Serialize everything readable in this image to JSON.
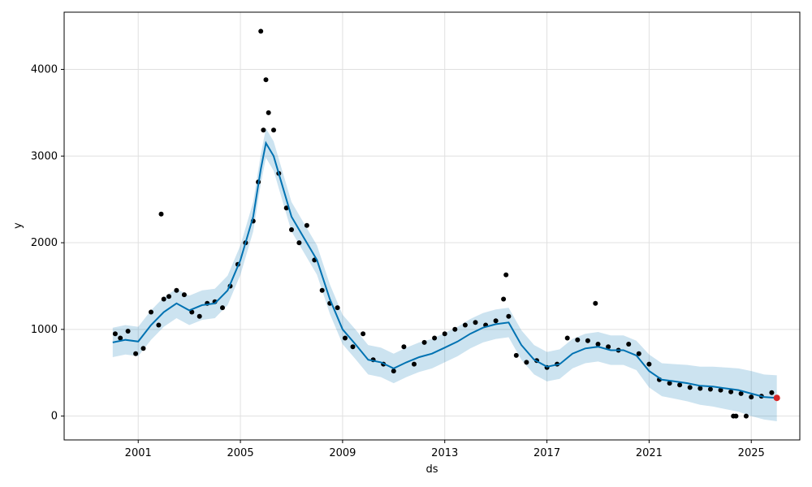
{
  "chart_data": {
    "type": "scatter",
    "title": "",
    "xlabel": "ds",
    "ylabel": "y",
    "xlim": [
      1998.1,
      2026.9
    ],
    "ylim": [
      -275,
      4660
    ],
    "x_ticks": [
      2001,
      2005,
      2009,
      2013,
      2017,
      2021,
      2025
    ],
    "y_ticks": [
      0,
      1000,
      2000,
      3000,
      4000
    ],
    "grid": true,
    "legend": "none",
    "colors": {
      "observations": "#000000",
      "forecast_line": "#0072B2",
      "uncertainty_band": "#0072B2",
      "last_point": "#d62728",
      "grid": "#e0e0e0"
    },
    "series": [
      {
        "name": "observed",
        "kind": "scatter",
        "x": [
          2000.1,
          2000.3,
          2000.6,
          2000.9,
          2001.2,
          2001.5,
          2001.8,
          2002.0,
          2002.2,
          2002.5,
          2002.8,
          2003.1,
          2003.4,
          2003.7,
          2004.0,
          2004.3,
          2004.6,
          2004.9,
          2005.2,
          2005.5,
          2005.7,
          2005.9,
          2006.1,
          2006.3,
          2006.5,
          2006.8,
          2007.0,
          2007.3,
          2007.6,
          2007.9,
          2008.2,
          2008.5,
          2008.8,
          2009.1,
          2009.4,
          2009.8,
          2010.2,
          2010.6,
          2011.0,
          2011.4,
          2011.8,
          2012.2,
          2012.6,
          2013.0,
          2013.4,
          2013.8,
          2014.2,
          2014.6,
          2015.0,
          2015.3,
          2015.5,
          2015.8,
          2016.2,
          2016.6,
          2017.0,
          2017.4,
          2017.8,
          2018.2,
          2018.6,
          2019.0,
          2019.4,
          2019.8,
          2020.2,
          2020.6,
          2021.0,
          2021.4,
          2021.8,
          2022.2,
          2022.6,
          2023.0,
          2023.4,
          2023.8,
          2024.2,
          2024.6,
          2025.0,
          2025.4,
          2025.8,
          2001.9,
          2005.8,
          2006.0,
          2015.4,
          2018.9,
          2024.3,
          2024.4,
          2024.8
        ],
        "y": [
          950,
          900,
          980,
          720,
          780,
          1200,
          1050,
          1350,
          1380,
          1450,
          1400,
          1200,
          1150,
          1300,
          1320,
          1250,
          1500,
          1750,
          2000,
          2250,
          2700,
          3300,
          3500,
          3300,
          2800,
          2400,
          2150,
          2000,
          2200,
          1800,
          1450,
          1300,
          1250,
          900,
          800,
          950,
          650,
          600,
          520,
          800,
          600,
          850,
          900,
          950,
          1000,
          1050,
          1080,
          1050,
          1100,
          1350,
          1150,
          700,
          620,
          640,
          560,
          600,
          900,
          880,
          870,
          830,
          800,
          760,
          830,
          720,
          600,
          420,
          380,
          360,
          330,
          320,
          310,
          300,
          280,
          260,
          220,
          230,
          270,
          2330,
          4440,
          3880,
          1630,
          1300,
          0,
          0,
          0
        ]
      },
      {
        "name": "forecast",
        "kind": "line",
        "x": [
          2000.0,
          2000.5,
          2001.0,
          2001.5,
          2002.0,
          2002.5,
          2003.0,
          2003.5,
          2004.0,
          2004.5,
          2005.0,
          2005.5,
          2005.8,
          2006.0,
          2006.3,
          2006.6,
          2007.0,
          2007.5,
          2008.0,
          2008.5,
          2009.0,
          2009.5,
          2010.0,
          2010.5,
          2011.0,
          2011.5,
          2012.0,
          2012.5,
          2013.0,
          2013.5,
          2014.0,
          2014.5,
          2015.0,
          2015.5,
          2016.0,
          2016.5,
          2017.0,
          2017.5,
          2018.0,
          2018.5,
          2019.0,
          2019.5,
          2020.0,
          2020.5,
          2021.0,
          2021.5,
          2022.0,
          2022.5,
          2023.0,
          2023.5,
          2024.0,
          2024.5,
          2025.0,
          2025.5,
          2026.0
        ],
        "y": [
          850,
          880,
          860,
          1050,
          1200,
          1300,
          1220,
          1280,
          1300,
          1450,
          1800,
          2300,
          2850,
          3150,
          3000,
          2700,
          2300,
          2050,
          1800,
          1350,
          1000,
          830,
          650,
          620,
          550,
          620,
          680,
          720,
          790,
          860,
          950,
          1020,
          1060,
          1080,
          820,
          650,
          570,
          600,
          720,
          780,
          800,
          760,
          760,
          700,
          520,
          420,
          400,
          380,
          350,
          340,
          320,
          300,
          260,
          220,
          210
        ]
      },
      {
        "name": "uncertainty",
        "kind": "band",
        "x": [
          2000.0,
          2000.5,
          2001.0,
          2001.5,
          2002.0,
          2002.5,
          2003.0,
          2003.5,
          2004.0,
          2004.5,
          2005.0,
          2005.5,
          2005.8,
          2006.0,
          2006.3,
          2006.6,
          2007.0,
          2007.5,
          2008.0,
          2008.5,
          2009.0,
          2009.5,
          2010.0,
          2010.5,
          2011.0,
          2011.5,
          2012.0,
          2012.5,
          2013.0,
          2013.5,
          2014.0,
          2014.5,
          2015.0,
          2015.5,
          2016.0,
          2016.5,
          2017.0,
          2017.5,
          2018.0,
          2018.5,
          2019.0,
          2019.5,
          2020.0,
          2020.5,
          2021.0,
          2021.5,
          2022.0,
          2022.5,
          2023.0,
          2023.5,
          2024.0,
          2024.5,
          2025.0,
          2025.5,
          2026.0
        ],
        "lower": [
          680,
          710,
          690,
          880,
          1030,
          1130,
          1050,
          1110,
          1130,
          1280,
          1630,
          2130,
          2680,
          2980,
          2830,
          2530,
          2130,
          1880,
          1630,
          1180,
          830,
          660,
          480,
          450,
          380,
          450,
          510,
          550,
          620,
          690,
          780,
          850,
          890,
          910,
          650,
          480,
          400,
          430,
          550,
          610,
          630,
          590,
          590,
          530,
          330,
          230,
          200,
          170,
          130,
          110,
          80,
          50,
          0,
          -40,
          -60
        ],
        "upper": [
          1020,
          1050,
          1030,
          1220,
          1370,
          1470,
          1390,
          1450,
          1470,
          1620,
          1970,
          2470,
          3020,
          3320,
          3170,
          2870,
          2470,
          2220,
          1970,
          1520,
          1170,
          1000,
          820,
          790,
          720,
          790,
          850,
          890,
          960,
          1030,
          1120,
          1190,
          1230,
          1250,
          990,
          820,
          740,
          770,
          890,
          950,
          970,
          930,
          930,
          870,
          710,
          610,
          600,
          590,
          570,
          570,
          560,
          550,
          520,
          480,
          470
        ]
      }
    ]
  }
}
